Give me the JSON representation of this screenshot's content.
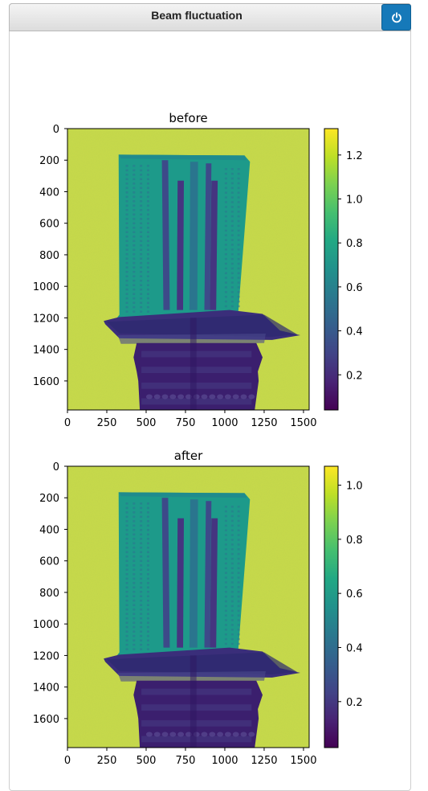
{
  "window": {
    "title": "Beam fluctuation",
    "power_icon": "power-icon"
  },
  "colors": {
    "accent": "#1679b9",
    "background": "#c8db4a"
  },
  "chart_data": [
    {
      "type": "heatmap",
      "title": "before",
      "xlabel": "",
      "ylabel": "",
      "xlim": [
        0,
        1536
      ],
      "ylim": [
        1784,
        0
      ],
      "x_ticks": [
        "0",
        "250",
        "500",
        "750",
        "1000",
        "1250",
        "1500"
      ],
      "y_ticks": [
        "0",
        "200",
        "400",
        "600",
        "800",
        "1000",
        "1200",
        "1400",
        "1600"
      ],
      "colormap": "viridis",
      "colorbar": {
        "range": [
          0.04,
          1.32
        ],
        "ticks": [
          "0.2",
          "0.4",
          "0.6",
          "0.8",
          "1.0",
          "1.2"
        ]
      }
    },
    {
      "type": "heatmap",
      "title": "after",
      "xlabel": "",
      "ylabel": "",
      "xlim": [
        0,
        1536
      ],
      "ylim": [
        1784,
        0
      ],
      "x_ticks": [
        "0",
        "250",
        "500",
        "750",
        "1000",
        "1250",
        "1500"
      ],
      "y_ticks": [
        "0",
        "200",
        "400",
        "600",
        "800",
        "1000",
        "1200",
        "1400",
        "1600"
      ],
      "colormap": "viridis",
      "colorbar": {
        "range": [
          0.03,
          1.07
        ],
        "ticks": [
          "0.2",
          "0.4",
          "0.6",
          "0.8",
          "1.0"
        ]
      }
    }
  ]
}
